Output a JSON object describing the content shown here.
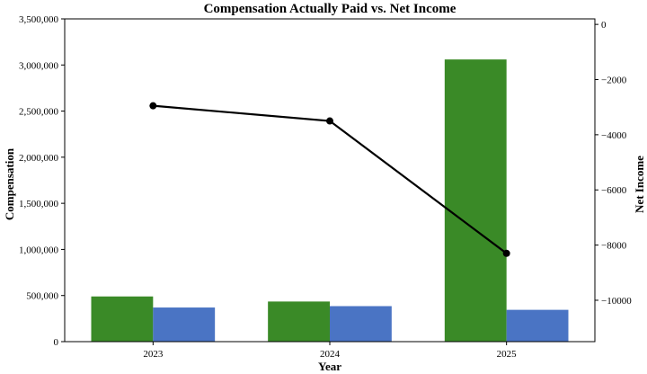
{
  "chart_data": {
    "type": "bar",
    "title": "Compensation Actually Paid vs. Net Income",
    "xlabel": "Year",
    "ylabel": "Compensation",
    "y2label": "Net Income",
    "categories": [
      "2023",
      "2024",
      "2025"
    ],
    "series": [
      {
        "kind": "bar",
        "axis": "left",
        "color": "#3a8a27",
        "values": [
          490000,
          435000,
          3060000
        ]
      },
      {
        "kind": "bar",
        "axis": "left",
        "color": "#4a74c4",
        "values": [
          370000,
          385000,
          345000
        ]
      },
      {
        "kind": "line",
        "axis": "right",
        "color": "#000000",
        "values": [
          -2950,
          -3500,
          -8300
        ]
      }
    ],
    "ylim": [
      0,
      3500000
    ],
    "y2lim": [
      -11500,
      200
    ],
    "yticks": [
      0,
      500000,
      1000000,
      1500000,
      2000000,
      2500000,
      3000000,
      3500000
    ],
    "yticklabels": [
      "0",
      "500,000",
      "1,000,000",
      "1,500,000",
      "2,000,000",
      "2,500,000",
      "3,000,000",
      "3,500,000"
    ],
    "y2ticks": [
      0,
      -2000,
      -4000,
      -6000,
      -8000,
      -10000
    ],
    "y2ticklabels": [
      "0",
      "−2000",
      "−4000",
      "−6000",
      "−8000",
      "−10000"
    ],
    "grid": false,
    "legend": "none"
  }
}
